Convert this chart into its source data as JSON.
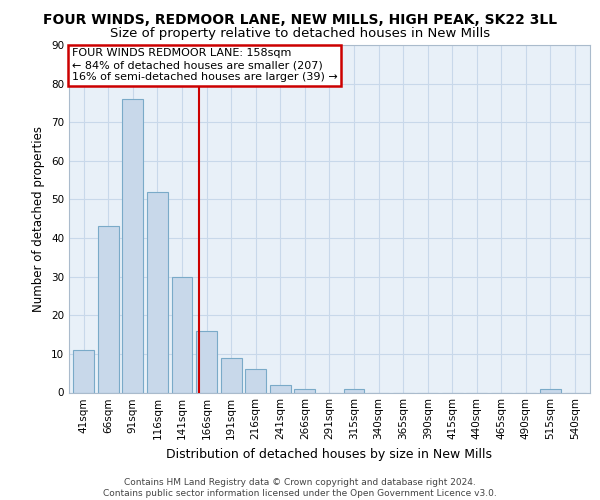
{
  "title": "FOUR WINDS, REDMOOR LANE, NEW MILLS, HIGH PEAK, SK22 3LL",
  "subtitle": "Size of property relative to detached houses in New Mills",
  "xlabel": "Distribution of detached houses by size in New Mills",
  "ylabel": "Number of detached properties",
  "categories": [
    "41sqm",
    "66sqm",
    "91sqm",
    "116sqm",
    "141sqm",
    "166sqm",
    "191sqm",
    "216sqm",
    "241sqm",
    "266sqm",
    "291sqm",
    "315sqm",
    "340sqm",
    "365sqm",
    "390sqm",
    "415sqm",
    "440sqm",
    "465sqm",
    "490sqm",
    "515sqm",
    "540sqm"
  ],
  "values": [
    11,
    43,
    76,
    52,
    30,
    16,
    9,
    6,
    2,
    1,
    0,
    1,
    0,
    0,
    0,
    0,
    0,
    0,
    0,
    1,
    0
  ],
  "bar_color": "#c8d8ea",
  "bar_edge_color": "#7aaac8",
  "grid_color": "#c8d8ea",
  "background_color": "#e8f0f8",
  "vline_color": "#cc0000",
  "annotation_lines": [
    "FOUR WINDS REDMOOR LANE: 158sqm",
    "← 84% of detached houses are smaller (207)",
    "16% of semi-detached houses are larger (39) →"
  ],
  "annotation_box_color": "#cc0000",
  "ylim": [
    0,
    90
  ],
  "yticks": [
    0,
    10,
    20,
    30,
    40,
    50,
    60,
    70,
    80,
    90
  ],
  "footer_line1": "Contains HM Land Registry data © Crown copyright and database right 2024.",
  "footer_line2": "Contains public sector information licensed under the Open Government Licence v3.0.",
  "title_fontsize": 10,
  "subtitle_fontsize": 9.5,
  "xlabel_fontsize": 9,
  "ylabel_fontsize": 8.5,
  "tick_fontsize": 7.5,
  "annotation_fontsize": 8,
  "footer_fontsize": 6.5
}
